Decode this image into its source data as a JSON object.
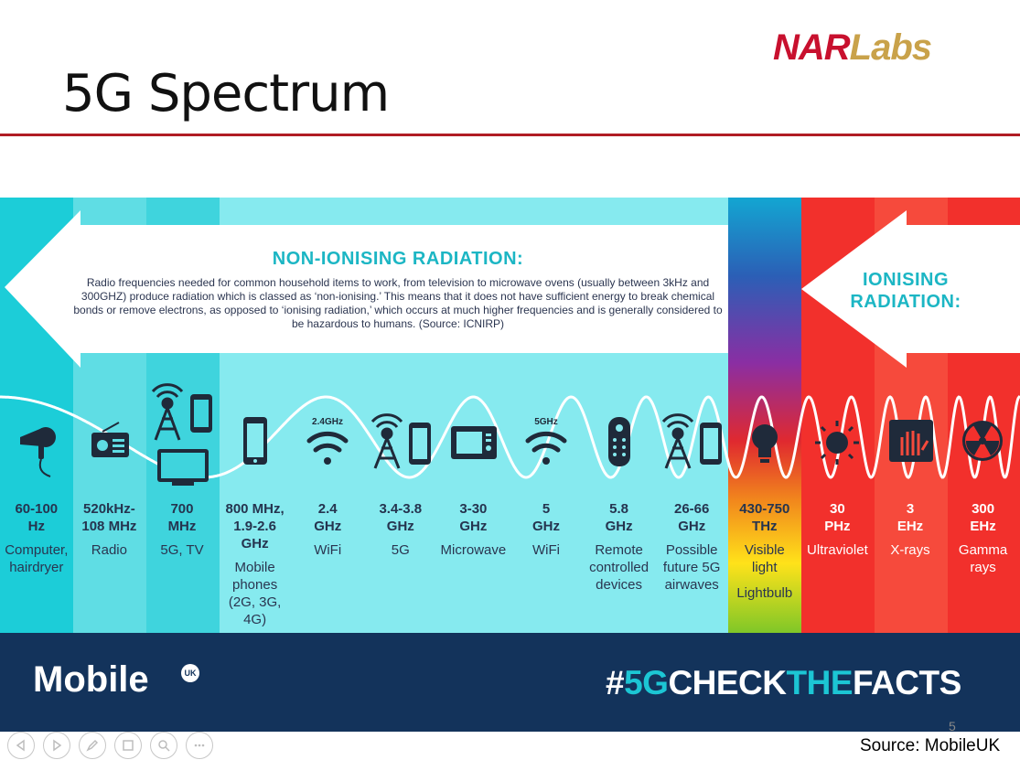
{
  "slide": {
    "title": "5G Spectrum",
    "logo_primary": "NAR",
    "logo_secondary": "Labs",
    "page_number": "5",
    "source": "Source: MobileUK"
  },
  "infographic": {
    "non_ionising_heading": "NON-IONISING RADIATION:",
    "non_ionising_body": "Radio frequencies needed for common household items to work, from television to microwave ovens (usually between 3kHz and 300GHZ) produce radiation which is classed as ‘non-ionising.’ This means that it does not have sufficient energy to break chemical bonds or remove electrons, as opposed to ‘ionising radiation,’ which occurs at much higher frequencies and is generally considered to be hazardous to humans. (Source: ICNIRP)",
    "ionising_heading_line1": "IONISING",
    "ionising_heading_line2": "RADIATION:",
    "wifi_24_tag": "2.4GHz",
    "wifi_5_tag": "5GHz",
    "columns": [
      {
        "freq_lines": [
          "60-100",
          "Hz"
        ],
        "use_lines": [
          "Computer,",
          "hairdryer"
        ],
        "icon": "hairdryer-icon"
      },
      {
        "freq_lines": [
          "520kHz-",
          "108 MHz"
        ],
        "use_lines": [
          "Radio"
        ],
        "icon": "radio-icon"
      },
      {
        "freq_lines": [
          "700",
          "MHz"
        ],
        "use_lines": [
          "5G, TV"
        ],
        "icon": "tower-tv-icon"
      },
      {
        "freq_lines": [
          "800 MHz,",
          "1.9-2.6",
          "GHz"
        ],
        "use_lines": [
          "Mobile",
          "phones",
          "(2G, 3G,",
          "4G)"
        ],
        "icon": "phone-icon"
      },
      {
        "freq_lines": [
          "2.4",
          "GHz"
        ],
        "use_lines": [
          "WiFi"
        ],
        "icon": "wifi-icon"
      },
      {
        "freq_lines": [
          "3.4-3.8",
          "GHz"
        ],
        "use_lines": [
          "5G"
        ],
        "icon": "tower-phone-icon"
      },
      {
        "freq_lines": [
          "3-30",
          "GHz"
        ],
        "use_lines": [
          "Microwave"
        ],
        "icon": "microwave-icon"
      },
      {
        "freq_lines": [
          "5",
          "GHz"
        ],
        "use_lines": [
          "WiFi"
        ],
        "icon": "wifi-icon"
      },
      {
        "freq_lines": [
          "5.8",
          "GHz"
        ],
        "use_lines": [
          "Remote",
          "controlled",
          "devices"
        ],
        "icon": "remote-icon"
      },
      {
        "freq_lines": [
          "26-66",
          "GHz"
        ],
        "use_lines": [
          "Possible",
          "future 5G",
          "airwaves"
        ],
        "icon": "tower-phone-icon"
      },
      {
        "freq_lines": [
          "430-750",
          "THz"
        ],
        "use_lines": [
          "Visible",
          "light",
          "Lightbulb"
        ],
        "icon": "lightbulb-icon"
      },
      {
        "freq_lines": [
          "30",
          "PHz"
        ],
        "use_lines": [
          "Ultraviolet"
        ],
        "icon": "sun-icon"
      },
      {
        "freq_lines": [
          "3",
          "EHz"
        ],
        "use_lines": [
          "X-rays"
        ],
        "icon": "xray-icon"
      },
      {
        "freq_lines": [
          "300",
          "EHz"
        ],
        "use_lines": [
          "Gamma",
          "rays"
        ],
        "icon": "radiation-icon"
      }
    ],
    "brand": "Mobile",
    "brand_badge": "UK",
    "hashtag_part1": "#",
    "hashtag_part2": "5G",
    "hashtag_part3": "CHECK",
    "hashtag_part4": "THE",
    "hashtag_part5": "FACTS"
  },
  "colors": {
    "title_rule": "#b01c24",
    "cyan_light": "#7fe9ee",
    "cyan_mid": "#3fd4dd",
    "cyan_dark": "#1cc6d4",
    "red": "#f0332e",
    "navy": "#13335b",
    "logo_red": "#c8102e",
    "logo_gold": "#c9a24a"
  },
  "toolbar": [
    "prev-icon",
    "next-icon",
    "pen-icon",
    "slides-icon",
    "zoom-icon",
    "more-icon"
  ]
}
